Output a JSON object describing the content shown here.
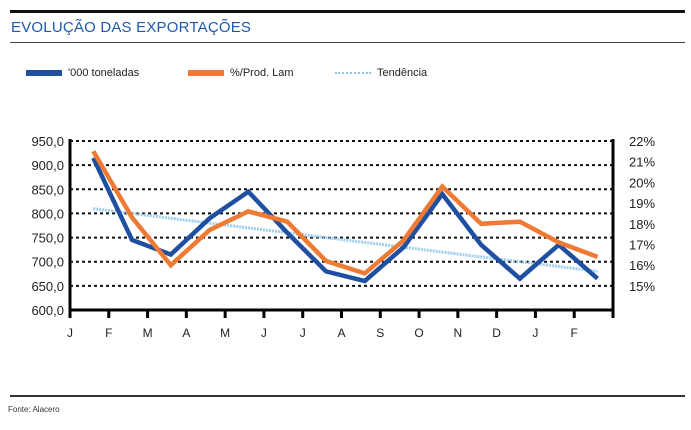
{
  "header": {
    "title": "EVOLUÇÃO DAS EXPORTAÇÕES"
  },
  "footer": {
    "source": "Fonte: Alacero"
  },
  "colors": {
    "blue": "#1f4fa0",
    "orange": "#ee7a34",
    "trend": "#8ec5ea",
    "title": "#1f5aa6"
  },
  "chart_data": {
    "type": "line",
    "title": "EVOLUÇÃO DAS EXPORTAÇÕES",
    "xlabel": "",
    "ylabel": "",
    "x_ticks": [
      "J",
      "F",
      "M",
      "A",
      "M",
      "J",
      "J",
      "A",
      "S",
      "O",
      "N",
      "D",
      "J",
      "F"
    ],
    "y_left": {
      "range": [
        600,
        950
      ],
      "ticks": [
        "950,0",
        "900,0",
        "850,0",
        "800,0",
        "750,0",
        "700,0",
        "650,0",
        "600,0"
      ],
      "tick_values": [
        950,
        900,
        850,
        800,
        750,
        700,
        650,
        600
      ]
    },
    "y_right": {
      "range": [
        14.2,
        22
      ],
      "ticks": [
        "22%",
        "21%",
        "20%",
        "19%",
        "18%",
        "17%",
        "16%",
        "15%"
      ],
      "tick_values": [
        22,
        21,
        20,
        19,
        18,
        17,
        16,
        15
      ]
    },
    "grid": true,
    "legend_position": "top-left",
    "series": [
      {
        "name": "'000 toneladas",
        "axis": "left",
        "values": [
          915,
          745,
          715,
          790,
          845,
          760,
          680,
          660,
          730,
          840,
          735,
          665,
          735,
          665
        ]
      },
      {
        "name": "%/Prod. Lam",
        "axis": "right",
        "values": [
          21.5,
          18.3,
          16.0,
          17.7,
          18.6,
          18.1,
          16.2,
          15.6,
          17.2,
          19.8,
          18.0,
          18.1,
          17.1,
          16.4
        ]
      },
      {
        "name": "Tendência",
        "axis": "left",
        "style": "dotted",
        "values": [
          810,
          800,
          790,
          780,
          770,
          760,
          750,
          740,
          730,
          720,
          710,
          700,
          690,
          680
        ]
      }
    ]
  }
}
